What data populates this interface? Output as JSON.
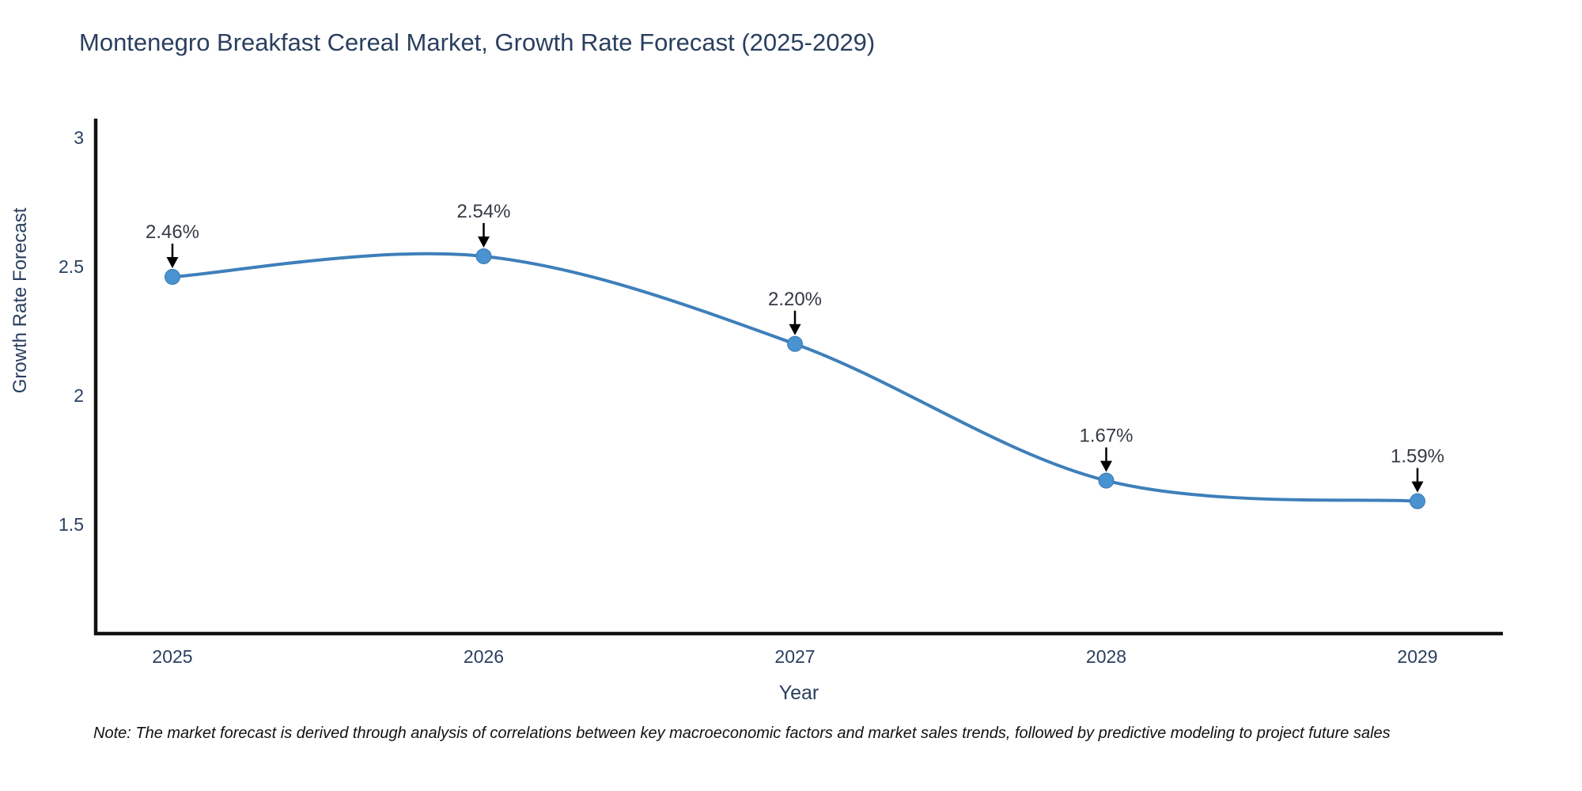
{
  "chart_data": {
    "type": "line",
    "title": "Montenegro Breakfast Cereal Market, Growth Rate Forecast (2025-2029)",
    "xlabel": "Year",
    "ylabel": "Growth Rate Forecast",
    "x": [
      2025,
      2026,
      2027,
      2028,
      2029
    ],
    "series": [
      {
        "name": "Growth Rate Forecast",
        "values": [
          2.46,
          2.54,
          2.2,
          1.67,
          1.59
        ]
      }
    ],
    "point_labels": [
      "2.46%",
      "2.54%",
      "2.20%",
      "1.67%",
      "1.59%"
    ],
    "y_ticks": [
      3,
      2.5,
      2,
      1.5
    ],
    "y_tick_labels": [
      "3",
      "2.5",
      "2",
      "1.5"
    ],
    "x_tick_labels": [
      "2025",
      "2026",
      "2027",
      "2028",
      "2029"
    ],
    "ylim": [
      1.07,
      3.07
    ],
    "grid": false,
    "legend": "none",
    "line_shape": "spline",
    "annotation_arrows": true
  },
  "note": "Note: The market forecast is derived through analysis of correlations between key macroeconomic factors and market sales trends, followed by predictive modeling to project future sales",
  "colors": {
    "line": "#3e7fba",
    "marker": "#4a92d0",
    "marker_edge": "#3a79b0",
    "axis": "#111111",
    "text": "#2a3f5f",
    "annotation_text": "#333a44",
    "arrow": "#000000",
    "background": "#ffffff"
  }
}
